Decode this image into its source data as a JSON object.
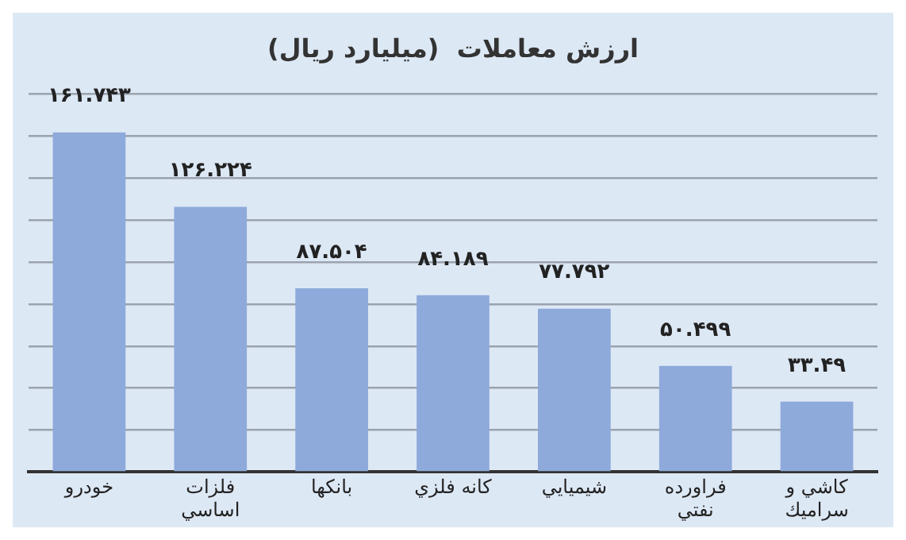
{
  "chart_data": {
    "type": "bar",
    "title": "ارزش معاملات  (ميليارد ريال)",
    "categories": [
      "خودرو",
      "فلزات اساسي",
      "بانكها",
      "كانه فلزي",
      "شيميايي",
      "فراورده نفتي",
      "كاشي و سراميك"
    ],
    "values": [
      161.743,
      126.224,
      87.504,
      84.189,
      77.792,
      50.499,
      33.49
    ],
    "value_labels": [
      "۱۶۱.۷۴۳",
      "۱۲۶.۲۲۴",
      "۸۷.۵۰۴",
      "۸۴.۱۸۹",
      "۷۷.۷۹۲",
      "۵۰.۴۹۹",
      "۳۳.۴۹"
    ],
    "color": "#8eaadb",
    "ylim": [
      0,
      180
    ],
    "yticks": [
      {
        "value": 0,
        "label": null
      },
      {
        "value": 20,
        "label": null
      },
      {
        "value": 40,
        "label": null
      },
      {
        "value": 60,
        "label": null
      },
      {
        "value": 80,
        "label": null
      },
      {
        "value": 100,
        "label": null
      },
      {
        "value": 120,
        "label": null
      },
      {
        "value": 140,
        "label": null
      },
      {
        "value": 160,
        "label": null
      },
      {
        "value": 180,
        "label": null
      }
    ],
    "grid": "y",
    "tick_labels": "x",
    "legend": false
  }
}
